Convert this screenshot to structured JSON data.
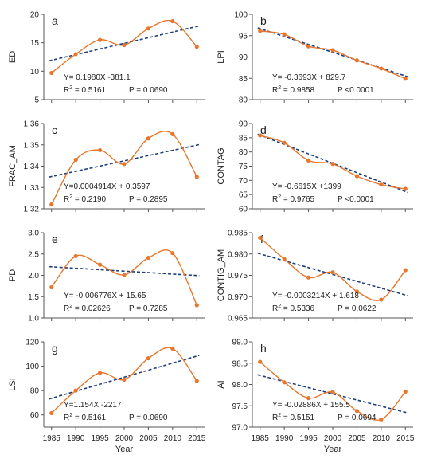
{
  "colors": {
    "data": "#E8762C",
    "trend": "#1F3F7A",
    "axis": "#555555"
  },
  "x_axis": {
    "values": [
      1985,
      1990,
      1995,
      2000,
      2005,
      2010,
      2015
    ],
    "ticks": [
      "1985",
      "1990",
      "1995",
      "2000",
      "2005",
      "2010",
      "2015"
    ],
    "label": "Year"
  },
  "chart_data": [
    {
      "type": "line",
      "panel": "a",
      "ylabel": "ED",
      "ylim": [
        5,
        20
      ],
      "yticks": [
        "5",
        "10",
        "15",
        "20"
      ],
      "x": [
        1985,
        1990,
        1995,
        2000,
        2005,
        2010,
        2015
      ],
      "y": [
        9.7,
        13.0,
        15.5,
        14.6,
        17.5,
        18.8,
        14.3
      ],
      "trend": {
        "slope": 0.198,
        "intercept": -381.1
      },
      "equation": "Y= 0.1980X -381.1",
      "r2_label": "2 = 0.5161",
      "p_label": "P  = 0.0690"
    },
    {
      "type": "line",
      "panel": "b",
      "ylabel": "LPI",
      "ylim": [
        80,
        100
      ],
      "yticks": [
        "80",
        "85",
        "90",
        "95",
        "100"
      ],
      "x": [
        1985,
        1990,
        1995,
        2000,
        2005,
        2010,
        2015
      ],
      "y": [
        96.1,
        95.3,
        92.5,
        91.6,
        89.2,
        87.3,
        84.9
      ],
      "trend": {
        "slope": -0.3693,
        "intercept": 829.7
      },
      "equation": "Y= -0.3693X + 829.7",
      "r2_label": "2 = 0.9858",
      "p_label": "P  <0.0001"
    },
    {
      "type": "line",
      "panel": "c",
      "ylabel": "FRAC_AM",
      "ylim": [
        1.32,
        1.36
      ],
      "yticks": [
        "1.32",
        "1.33",
        "1.34",
        "1.35",
        "1.36"
      ],
      "x": [
        1985,
        1990,
        1995,
        2000,
        2005,
        2010,
        2015
      ],
      "y": [
        1.322,
        1.343,
        1.3475,
        1.341,
        1.353,
        1.355,
        1.335
      ],
      "trend": {
        "slope": 0.0004914,
        "intercept": 0.3597
      },
      "equation": "Y=0.0004914X + 0.3597",
      "r2_label": "2 = 0.2190",
      "p_label": "P  = 0.2895"
    },
    {
      "type": "line",
      "panel": "d",
      "ylabel": "CONTAG",
      "ylim": [
        60,
        90
      ],
      "yticks": [
        "60",
        "65",
        "70",
        "75",
        "80",
        "85",
        "90"
      ],
      "x": [
        1985,
        1990,
        1995,
        2000,
        2005,
        2010,
        2015
      ],
      "y": [
        85.8,
        83.2,
        77.0,
        75.8,
        71.5,
        68.5,
        67.0
      ],
      "trend": {
        "slope": -0.6615,
        "intercept": 1399
      },
      "equation": "Y= -0.6615X +1399",
      "r2_label": "2 = 0.9765",
      "p_label": "P  <0.0001"
    },
    {
      "type": "line",
      "panel": "e",
      "ylabel": "PD",
      "ylim": [
        1.0,
        3.0
      ],
      "yticks": [
        "1.0",
        "1.5",
        "2.0",
        "2.5",
        "3.0"
      ],
      "x": [
        1985,
        1990,
        1995,
        2000,
        2005,
        2010,
        2015
      ],
      "y": [
        1.72,
        2.45,
        2.25,
        2.01,
        2.41,
        2.52,
        1.3
      ],
      "trend": {
        "slope": -0.006776,
        "intercept": 15.65
      },
      "equation": "Y= -0.006776X + 15.65",
      "r2_label": "2 = 0.02626",
      "p_label": "P  = 0.7285"
    },
    {
      "type": "line",
      "panel": "f",
      "ylabel": "CONTIG_AM",
      "ylim": [
        0.965,
        0.985
      ],
      "yticks": [
        "0.965",
        "0.970",
        "0.975",
        "0.980",
        "0.985"
      ],
      "x": [
        1985,
        1990,
        1995,
        2000,
        2005,
        2010,
        2015
      ],
      "y": [
        0.9838,
        0.9788,
        0.9745,
        0.9757,
        0.9712,
        0.9693,
        0.9762
      ],
      "trend": {
        "slope": -0.0003214,
        "intercept": 1.618
      },
      "equation": "Y= -0.0003214X + 1.618",
      "r2_label": "2 = 0.5336",
      "p_label": "P  = 0.0622"
    },
    {
      "type": "line",
      "panel": "g",
      "ylabel": "LSI",
      "ylim": [
        50,
        120
      ],
      "yticks": [
        "60",
        "80",
        "100",
        "120"
      ],
      "x": [
        1985,
        1990,
        1995,
        2000,
        2005,
        2010,
        2015
      ],
      "y": [
        61.5,
        80.0,
        94.5,
        89.0,
        106.5,
        114.5,
        88.0
      ],
      "trend": {
        "slope": 1.154,
        "intercept": -2217
      },
      "equation": "Y=1.154X -2217",
      "r2_label": "2 = 0.5161",
      "p_label": "P  = 0.0690"
    },
    {
      "type": "line",
      "panel": "h",
      "ylabel": "AI",
      "ylim": [
        97.0,
        99.0
      ],
      "yticks": [
        "97.0",
        "97.5",
        "98.0",
        "98.5",
        "99.0"
      ],
      "x": [
        1985,
        1990,
        1995,
        2000,
        2005,
        2010,
        2015
      ],
      "y": [
        98.53,
        98.05,
        97.68,
        97.82,
        97.38,
        97.18,
        97.83
      ],
      "trend": {
        "slope": -0.02886,
        "intercept": 155.5
      },
      "equation": "Y= -0.02886X + 155.5",
      "r2_label": "2 = 0.5151",
      "p_label": "P  = 0.0694"
    }
  ]
}
